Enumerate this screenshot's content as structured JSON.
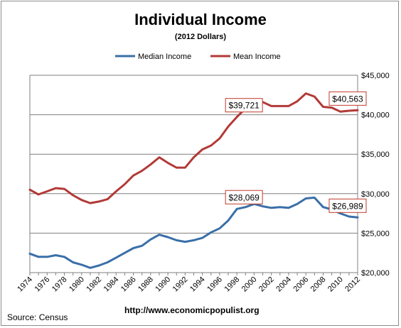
{
  "chart_data": {
    "type": "line",
    "title": "Individual Income",
    "subtitle": "(2012 Dollars)",
    "x": [
      1974,
      1975,
      1976,
      1977,
      1978,
      1979,
      1980,
      1981,
      1982,
      1983,
      1984,
      1985,
      1986,
      1987,
      1988,
      1989,
      1990,
      1991,
      1992,
      1993,
      1994,
      1995,
      1996,
      1997,
      1998,
      1999,
      2000,
      2001,
      2002,
      2003,
      2004,
      2005,
      2006,
      2007,
      2008,
      2009,
      2010,
      2011,
      2012
    ],
    "x_tick_labels": [
      "1974",
      "1976",
      "1978",
      "1980",
      "1982",
      "1984",
      "1986",
      "1988",
      "1990",
      "1992",
      "1994",
      "1996",
      "1998",
      "2000",
      "2002",
      "2004",
      "2006",
      "2008",
      "2010",
      "2012"
    ],
    "y_tick_labels": [
      "$20,000",
      "$25,000",
      "$30,000",
      "$35,000",
      "$40,000",
      "$45,000"
    ],
    "ylim": [
      20000,
      45000
    ],
    "y_axis_side": "right",
    "grid": true,
    "legend_position": "top",
    "series": [
      {
        "name": "Median Income",
        "color": "#3a6fa8",
        "values": [
          22400,
          22000,
          22000,
          22200,
          22000,
          21300,
          21000,
          20600,
          20900,
          21300,
          21900,
          22500,
          23100,
          23400,
          24200,
          24800,
          24500,
          24100,
          23900,
          24100,
          24400,
          25100,
          25600,
          26600,
          28069,
          28300,
          28700,
          28400,
          28200,
          28300,
          28200,
          28700,
          29400,
          29500,
          28300,
          28000,
          27500,
          27100,
          26989
        ]
      },
      {
        "name": "Mean Income",
        "color": "#b23a37",
        "values": [
          30500,
          29900,
          30300,
          30700,
          30600,
          29800,
          29200,
          28800,
          29000,
          29300,
          30300,
          31200,
          32300,
          32900,
          33700,
          34600,
          33900,
          33300,
          33300,
          34600,
          35600,
          36100,
          37000,
          38500,
          39721,
          40800,
          41500,
          41600,
          41100,
          41100,
          41100,
          41700,
          42700,
          42300,
          41000,
          40900,
          40400,
          40500,
          40563
        ]
      }
    ],
    "annotations": [
      {
        "text": "$39,721",
        "series": 1,
        "x": 1998
      },
      {
        "text": "$40,563",
        "series": 1,
        "x": 2012
      },
      {
        "text": "$28,069",
        "series": 0,
        "x": 1998
      },
      {
        "text": "$26,989",
        "series": 0,
        "x": 2012
      }
    ]
  },
  "footer": {
    "source": "Source:  Census",
    "url": "http://www.economicpopulist.org"
  },
  "colors": {
    "grid": "#7f7f7f",
    "callout_border": "#c0392b"
  }
}
